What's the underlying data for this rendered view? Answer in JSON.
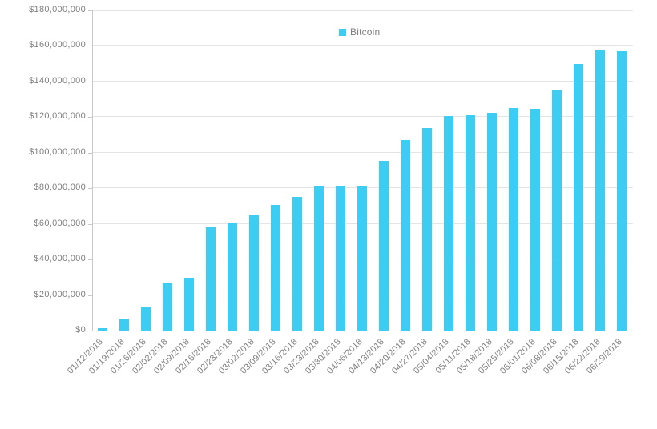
{
  "chart_data": {
    "type": "bar",
    "title": "",
    "xlabel": "",
    "ylabel": "",
    "legend_position": "top-center",
    "grid": true,
    "ylim": [
      0,
      180000000
    ],
    "ytick_interval": 20000000,
    "ytick_labels": [
      "$0",
      "$20,000,000",
      "$40,000,000",
      "$60,000,000",
      "$80,000,000",
      "$100,000,000",
      "$120,000,000",
      "$140,000,000",
      "$160,000,000",
      "$180,000,000"
    ],
    "categories": [
      "01/12/2018",
      "01/19/2018",
      "01/26/2018",
      "02/02/2018",
      "02/09/2018",
      "02/16/2018",
      "02/23/2018",
      "03/02/2018",
      "03/09/2018",
      "03/16/2018",
      "03/23/2018",
      "03/30/2018",
      "04/06/2018",
      "04/13/2018",
      "04/20/2018",
      "04/27/2018",
      "05/04/2018",
      "05/11/2018",
      "05/18/2018",
      "05/25/2018",
      "06/01/2018",
      "06/08/2018",
      "06/15/2018",
      "06/22/2018",
      "06/29/2018"
    ],
    "series": [
      {
        "name": "Bitcoin",
        "color": "#3ECDF2",
        "values": [
          1500000,
          6500000,
          13000000,
          27000000,
          29500000,
          58500000,
          60500000,
          65000000,
          70500000,
          75000000,
          81000000,
          81000000,
          81000000,
          95500000,
          107000000,
          114000000,
          120500000,
          121000000,
          122500000,
          125000000,
          124500000,
          135500000,
          150000000,
          157500000,
          157000000
        ]
      }
    ]
  },
  "colors": {
    "bar": "#3ECDF2",
    "gridline": "#e4e4e4",
    "axis_line": "#c9c9c9",
    "baseline": "#bdbdbd",
    "label_text": "#7f7f7f",
    "background": "#ffffff"
  }
}
